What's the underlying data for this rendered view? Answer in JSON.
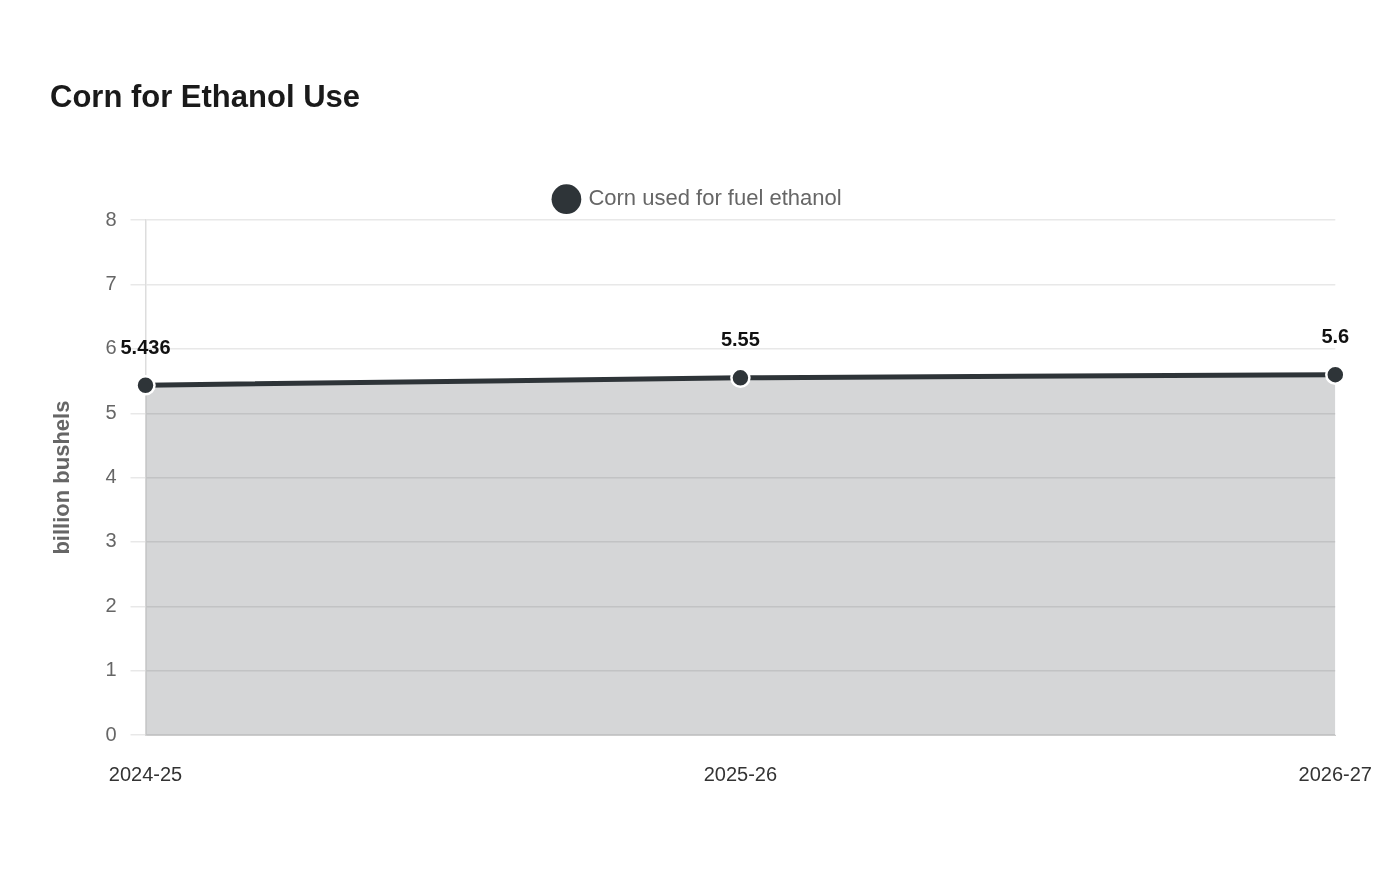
{
  "chart_data": {
    "type": "area",
    "title": "Corn for Ethanol Use",
    "ylabel": "billion bushels",
    "categories": [
      "2024-25",
      "2025-26",
      "2026-27"
    ],
    "series": [
      {
        "name": "Corn used for fuel ethanol",
        "color": "#2e3438",
        "values": [
          5.436,
          5.55,
          5.6
        ]
      }
    ],
    "ylim": [
      0,
      8
    ],
    "yticks": [
      0,
      1,
      2,
      3,
      4,
      5,
      6,
      7,
      8
    ],
    "grid": "y",
    "legend": "top",
    "marker": "circle",
    "data_labels": true
  }
}
